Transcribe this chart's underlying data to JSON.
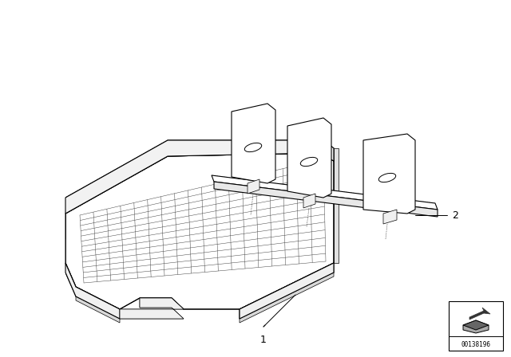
{
  "bg_color": "#ffffff",
  "line_color": "#000000",
  "label_1": "1",
  "label_2": "2",
  "part_number": "00138196",
  "fig_width": 6.4,
  "fig_height": 4.48,
  "lw_main": 0.8,
  "lw_thin": 0.5,
  "lw_grid": 0.35,
  "n_grid_rows": 13,
  "n_grid_cols": 18
}
